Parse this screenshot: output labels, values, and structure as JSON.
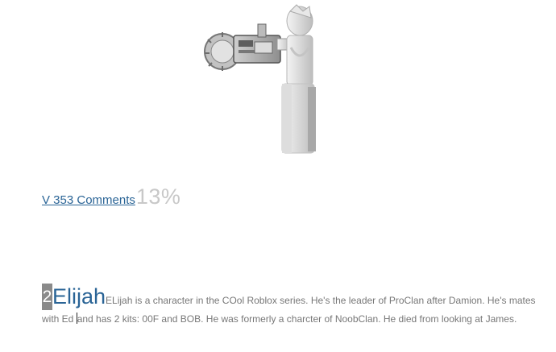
{
  "meta": {
    "comments_link": "V 353 Comments",
    "percent": "13%"
  },
  "entry": {
    "rank": "2",
    "name": "Elijah",
    "description_part1": "ELijah is a character in the COol Roblox series. He's the leader of ProClan after Damion. He's mates with Ed ",
    "description_part2": "and has 2 kits: 00F and BOB. He was formerly a charcter of NoobClan. He died from looking at James."
  },
  "colors": {
    "link": "#2a6496",
    "percent": "#c8c8c8",
    "badge": "#8a8a8a",
    "body_text": "#777777"
  },
  "icons": {
    "figure": "roblox-character-with-chainsaw-image"
  }
}
